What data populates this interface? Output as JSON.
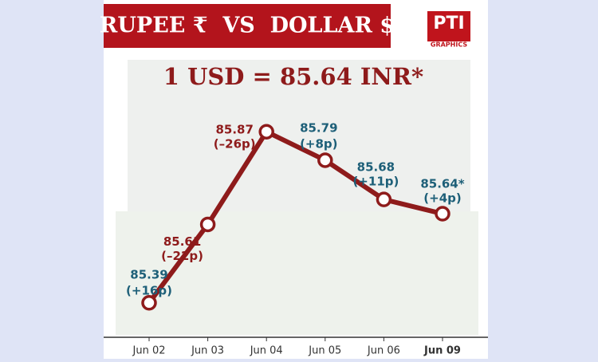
{
  "chart_data": {
    "type": "line",
    "title": "RUPEE ₹  VS  DOLLAR $",
    "headline": "1 USD = 85.64 INR*",
    "logo": "PTI",
    "logo_sub": "GRAPHICS",
    "categories": [
      "Jun 02",
      "Jun 03",
      "Jun 04",
      "Jun 05",
      "Jun 06",
      "Jun 09"
    ],
    "values": [
      85.39,
      85.61,
      85.87,
      85.79,
      85.68,
      85.64
    ],
    "value_labels": [
      "85.39",
      "85.61",
      "85.87",
      "85.79",
      "85.68",
      "85.64*"
    ],
    "changes": [
      "(+16p)",
      "(–22p)",
      "(–26p)",
      "(+8p)",
      "(+11p)",
      "(+4p)"
    ],
    "label_colors": [
      "#1d5f78",
      "#8e1b1b",
      "#8e1b1b",
      "#1d5f78",
      "#1d5f78",
      "#1d5f78"
    ],
    "color": "#8e1b1b",
    "ylim": [
      85.3,
      85.96
    ],
    "y_inverted": true
  }
}
